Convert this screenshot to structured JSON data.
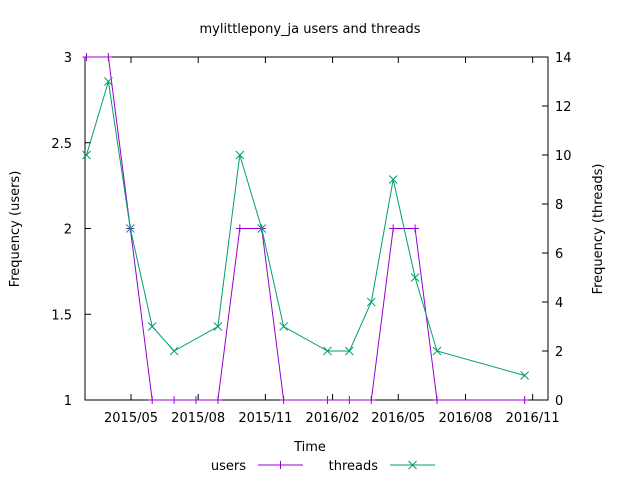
{
  "chart_data": {
    "type": "line",
    "title": "mylittlepony_ja users and threads",
    "xlabel": "Time",
    "ylabel_left": "Frequency (users)",
    "ylabel_right": "Frequency (threads)",
    "x_ticks": [
      "2015/05",
      "2015/08",
      "2015/11",
      "2016/02",
      "2016/05",
      "2016/08",
      "2016/11"
    ],
    "ylim_left": [
      1,
      3
    ],
    "yticks_left": [
      "1",
      "1.5",
      "2",
      "2.5",
      "3"
    ],
    "ylim_right": [
      0,
      14
    ],
    "yticks_right": [
      "0",
      "2",
      "4",
      "6",
      "8",
      "10",
      "12",
      "14"
    ],
    "xlim": [
      "2015-02-27",
      "2016-11-22"
    ],
    "grid": false,
    "legend_position": "bottom",
    "series": [
      {
        "name": "users",
        "axis": "left",
        "color": "#9400d3",
        "marker": "plus",
        "points": [
          [
            "2015-03-01",
            3
          ],
          [
            "2015-03-31",
            3
          ],
          [
            "2015-04-30",
            2
          ],
          [
            "2015-05-30",
            1
          ],
          [
            "2015-06-29",
            1
          ],
          [
            "2015-07-29",
            1
          ],
          [
            "2015-08-28",
            1
          ],
          [
            "2015-09-27",
            2
          ],
          [
            "2015-10-27",
            2
          ],
          [
            "2015-11-26",
            1
          ],
          [
            "2016-01-25",
            1
          ],
          [
            "2016-02-24",
            1
          ],
          [
            "2016-03-25",
            1
          ],
          [
            "2016-04-24",
            2
          ],
          [
            "2016-05-24",
            2
          ],
          [
            "2016-06-23",
            1
          ],
          [
            "2016-10-21",
            1
          ]
        ]
      },
      {
        "name": "threads",
        "axis": "right",
        "color": "#009e73",
        "marker": "cross",
        "points": [
          [
            "2015-03-01",
            10
          ],
          [
            "2015-03-31",
            13
          ],
          [
            "2015-04-30",
            7
          ],
          [
            "2015-05-30",
            3
          ],
          [
            "2015-06-29",
            2
          ],
          [
            "2015-08-28",
            3
          ],
          [
            "2015-09-27",
            10
          ],
          [
            "2015-10-27",
            7
          ],
          [
            "2015-11-26",
            3
          ],
          [
            "2016-01-25",
            2
          ],
          [
            "2016-02-24",
            2
          ],
          [
            "2016-03-25",
            4
          ],
          [
            "2016-04-24",
            9
          ],
          [
            "2016-05-24",
            5
          ],
          [
            "2016-06-23",
            2
          ],
          [
            "2016-10-21",
            1
          ]
        ]
      }
    ]
  }
}
